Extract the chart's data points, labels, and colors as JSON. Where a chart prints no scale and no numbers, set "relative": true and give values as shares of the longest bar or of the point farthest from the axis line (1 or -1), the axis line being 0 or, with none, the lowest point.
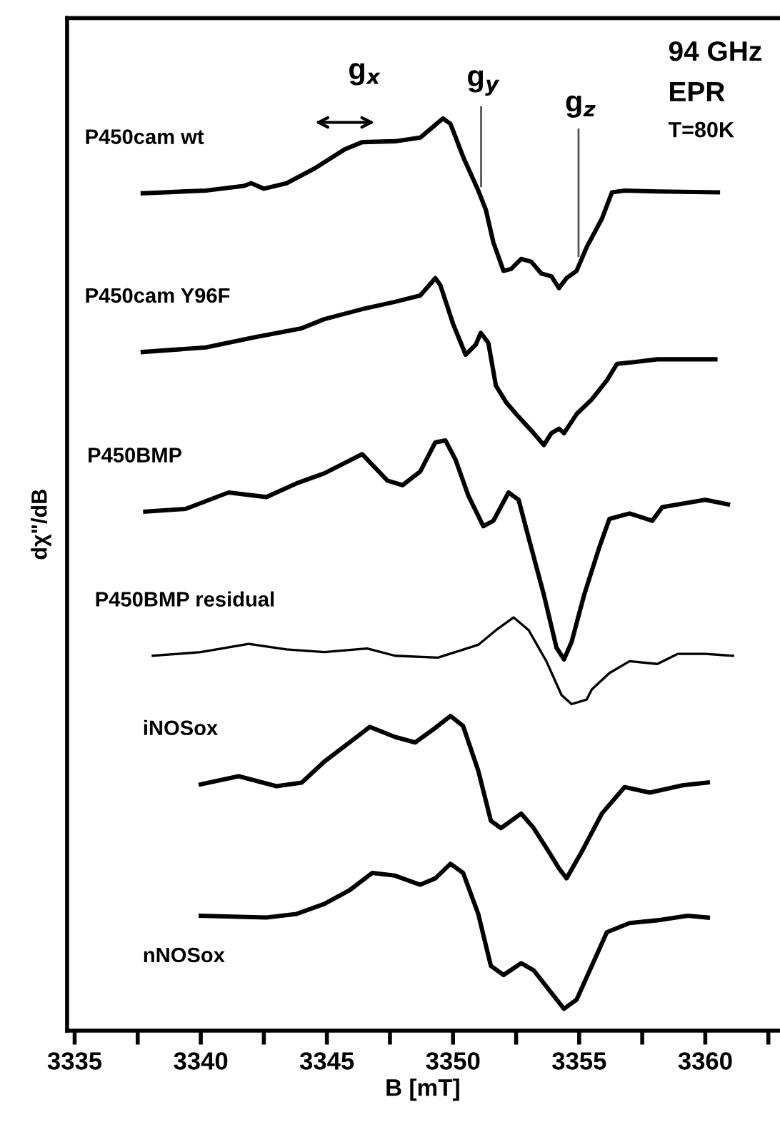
{
  "chart_data": {
    "type": "line",
    "relative": true,
    "xlabel": "B [mT]",
    "ylabel": "dχ\"/dB",
    "xlim": [
      3334.7,
      3362.9
    ],
    "xticks": [
      3335,
      {
        "value": 3337.5,
        "label": null
      },
      3340,
      {
        "value": 3342.5,
        "label": null
      },
      3345,
      {
        "value": 3347.5,
        "label": null
      },
      3350,
      {
        "value": 3352.5,
        "label": null
      },
      3355,
      {
        "value": 3357.5,
        "label": null
      },
      3360,
      {
        "value": 3362.5,
        "label": null
      }
    ],
    "tick_labels": "x",
    "grid": false,
    "legend": false,
    "marker": "none",
    "line_style": "solid",
    "annotations": [
      "g$_{x}$",
      "g$_{y}$",
      "g$_{z}$",
      "94 GHz",
      "EPR",
      "T=80K"
    ],
    "series": [
      {
        "name": "P450cam wt",
        "color": "#000000",
        "x": [
          3337.7,
          3340.2,
          3341.7,
          3342.0,
          3342.5,
          3343.4,
          3344.5,
          3345.7,
          3346.4,
          3347.7,
          3348.7,
          3349.3,
          3349.6,
          3349.9,
          3350.4,
          3351.0,
          3351.3,
          3351.6,
          3352.0,
          3352.3,
          3352.7,
          3353.1,
          3353.5,
          3353.9,
          3354.2,
          3354.5,
          3354.9,
          3355.3,
          3355.9,
          3356.3,
          3356.8,
          3358.1,
          3360.5
        ],
        "values": [
          0.918,
          0.921,
          0.926,
          0.929,
          0.923,
          0.929,
          0.945,
          0.966,
          0.974,
          0.975,
          0.979,
          0.993,
          1.0,
          0.994,
          0.958,
          0.921,
          0.9,
          0.864,
          0.833,
          0.835,
          0.846,
          0.843,
          0.83,
          0.827,
          0.814,
          0.825,
          0.833,
          0.859,
          0.89,
          0.919,
          0.921,
          0.92,
          0.919
        ]
      },
      {
        "name": "P450cam Y96F",
        "color": "#000000",
        "x": [
          3337.7,
          3340.2,
          3342.1,
          3344.0,
          3344.9,
          3346.4,
          3347.7,
          3348.7,
          3349.3,
          3349.5,
          3350.0,
          3350.5,
          3350.9,
          3351.1,
          3351.4,
          3351.7,
          3352.1,
          3352.6,
          3353.1,
          3353.6,
          3353.9,
          3354.2,
          3354.4,
          3354.9,
          3355.5,
          3356.1,
          3356.5,
          3357.2,
          3358.1,
          3360.4
        ],
        "values": [
          0.744,
          0.749,
          0.76,
          0.77,
          0.78,
          0.791,
          0.799,
          0.806,
          0.825,
          0.817,
          0.775,
          0.741,
          0.752,
          0.765,
          0.754,
          0.707,
          0.689,
          0.673,
          0.658,
          0.642,
          0.655,
          0.66,
          0.655,
          0.676,
          0.692,
          0.713,
          0.731,
          0.733,
          0.736,
          0.736
        ]
      },
      {
        "name": "P450BMP",
        "color": "#000000",
        "x": [
          3337.8,
          3339.4,
          3341.1,
          3342.6,
          3343.8,
          3344.9,
          3346.4,
          3347.4,
          3348.0,
          3348.7,
          3349.3,
          3349.7,
          3350.1,
          3350.6,
          3351.2,
          3351.6,
          3352.2,
          3352.6,
          3353.0,
          3353.6,
          3354.1,
          3354.4,
          3354.7,
          3355.2,
          3355.8,
          3356.2,
          3357.0,
          3357.9,
          3358.3,
          3360.0,
          3360.9
        ],
        "values": [
          0.569,
          0.572,
          0.59,
          0.585,
          0.6,
          0.611,
          0.632,
          0.603,
          0.598,
          0.613,
          0.645,
          0.647,
          0.626,
          0.587,
          0.553,
          0.559,
          0.59,
          0.582,
          0.54,
          0.478,
          0.42,
          0.407,
          0.426,
          0.478,
          0.53,
          0.561,
          0.567,
          0.559,
          0.574,
          0.582,
          0.577
        ]
      },
      {
        "name": "P450BMP residual",
        "color": "#000000",
        "x": [
          3338.1,
          3340.0,
          3341.9,
          3343.4,
          3344.9,
          3346.6,
          3347.7,
          3349.4,
          3351.0,
          3351.7,
          3352.4,
          3353.0,
          3353.7,
          3354.3,
          3354.7,
          3355.3,
          3355.5,
          3356.2,
          3357.0,
          3358.1,
          3358.9,
          3360.0,
          3361.1
        ],
        "values": [
          0.411,
          0.415,
          0.424,
          0.418,
          0.415,
          0.419,
          0.411,
          0.409,
          0.423,
          0.439,
          0.453,
          0.439,
          0.405,
          0.368,
          0.358,
          0.363,
          0.374,
          0.392,
          0.405,
          0.402,
          0.413,
          0.413,
          0.411
        ]
      },
      {
        "name": "iNOSox",
        "color": "#000000",
        "x": [
          3340.0,
          3341.5,
          3343.0,
          3344.0,
          3344.9,
          3345.9,
          3346.7,
          3347.7,
          3348.5,
          3349.3,
          3349.9,
          3350.4,
          3351.0,
          3351.5,
          3351.9,
          3352.7,
          3353.2,
          3353.8,
          3354.2,
          3354.5,
          3355.1,
          3355.9,
          3356.8,
          3357.8,
          3359.1,
          3360.1
        ],
        "values": [
          0.27,
          0.279,
          0.268,
          0.272,
          0.295,
          0.316,
          0.333,
          0.322,
          0.316,
          0.332,
          0.345,
          0.334,
          0.285,
          0.23,
          0.222,
          0.238,
          0.222,
          0.196,
          0.178,
          0.167,
          0.196,
          0.238,
          0.267,
          0.261,
          0.269,
          0.272
        ]
      },
      {
        "name": "nNOSox",
        "color": "#000000",
        "x": [
          3340.0,
          3342.6,
          3343.8,
          3344.9,
          3345.9,
          3346.8,
          3347.7,
          3348.7,
          3349.3,
          3349.9,
          3350.4,
          3351.0,
          3351.5,
          3352.0,
          3352.7,
          3353.2,
          3353.8,
          3354.4,
          3354.9,
          3355.5,
          3356.1,
          3357.0,
          3358.1,
          3359.3,
          3360.1
        ],
        "values": [
          0.126,
          0.124,
          0.128,
          0.139,
          0.154,
          0.173,
          0.17,
          0.16,
          0.167,
          0.183,
          0.173,
          0.128,
          0.071,
          0.061,
          0.074,
          0.066,
          0.045,
          0.024,
          0.034,
          0.071,
          0.108,
          0.118,
          0.121,
          0.126,
          0.124
        ]
      }
    ]
  }
}
